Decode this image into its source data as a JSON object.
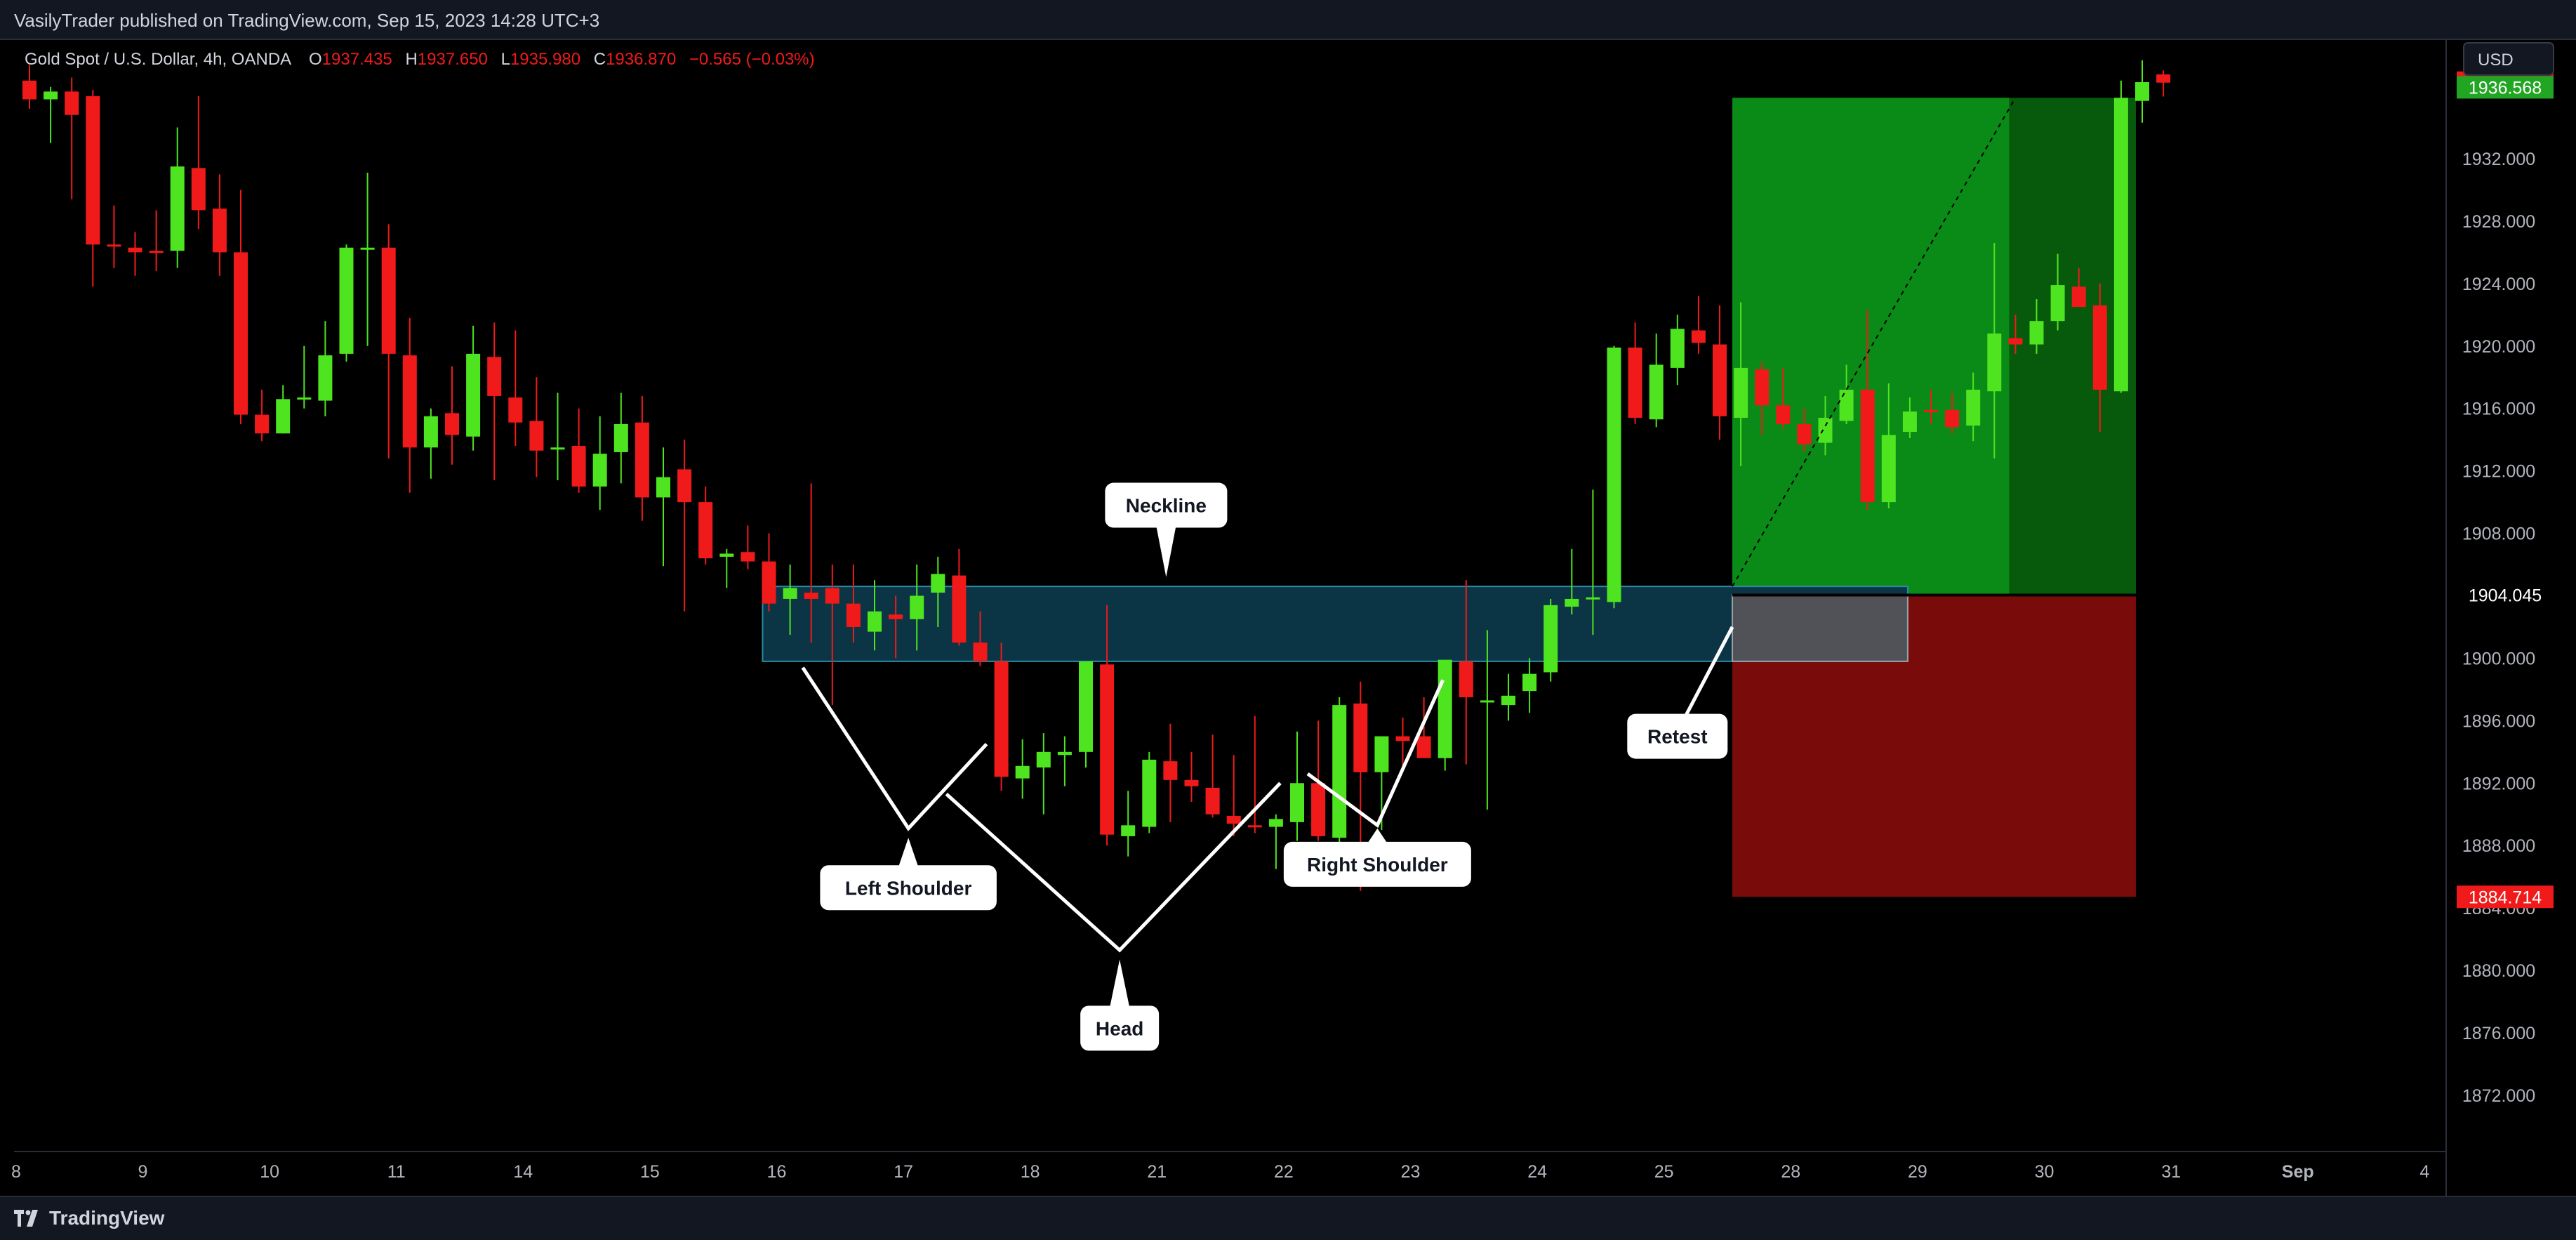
{
  "header": {
    "published": "VasilyTrader published on TradingView.com, Sep 15, 2023 14:28 UTC+3",
    "symbol": "Gold Spot / U.S. Dollar, 4h, OANDA",
    "o_label": "O",
    "o_value": "1937.435",
    "h_label": "H",
    "h_value": "1937.650",
    "l_label": "L",
    "l_value": "1935.980",
    "c_label": "C",
    "c_value": "1936.870",
    "change": "−0.565 (−0.03%)",
    "currency": "USD"
  },
  "footer": {
    "brand": "TradingView"
  },
  "colors": {
    "up": "#4ee41f",
    "down": "#f01a1a",
    "bg": "#000000",
    "zone": "#0b3544",
    "target": "#0a8a16",
    "stop": "#7a0b0b"
  },
  "chart_data": {
    "type": "candlestick",
    "ylim": [
      1868.4,
      1939.6
    ],
    "y_ticks": [
      1872,
      1876,
      1880,
      1884,
      1888,
      1892,
      1896,
      1900,
      1904,
      1908,
      1912,
      1916,
      1920,
      1924,
      1928,
      1932
    ],
    "y_tick_labels": [
      "1872.000",
      "1876.000",
      "1880.000",
      "1884.000",
      "1888.000",
      "1892.000",
      "1896.000",
      "1900.000",
      "1904.000",
      "1908.000",
      "1912.000",
      "1916.000",
      "1920.000",
      "1924.000",
      "1928.000",
      "1932.000"
    ],
    "price_labels": [
      {
        "value": 1936.87,
        "text": "1936.870",
        "color": "#f01a1a"
      },
      {
        "value": 1936.568,
        "text": "1936.568",
        "color": "#22a523"
      },
      {
        "value": 1904.045,
        "text": "1904.045",
        "color": "#000000"
      },
      {
        "value": 1884.714,
        "text": "1884.714",
        "color": "#f01a1a"
      }
    ],
    "x_labels": [
      {
        "i": -1,
        "text": "8"
      },
      {
        "i": 5,
        "text": "9"
      },
      {
        "i": 11,
        "text": "10"
      },
      {
        "i": 17,
        "text": "11"
      },
      {
        "i": 23,
        "text": "14"
      },
      {
        "i": 29,
        "text": "15"
      },
      {
        "i": 35,
        "text": "16"
      },
      {
        "i": 41,
        "text": "17"
      },
      {
        "i": 47,
        "text": "18"
      },
      {
        "i": 53,
        "text": "21"
      },
      {
        "i": 59,
        "text": "22"
      },
      {
        "i": 65,
        "text": "23"
      },
      {
        "i": 71,
        "text": "24"
      },
      {
        "i": 77,
        "text": "25"
      },
      {
        "i": 83,
        "text": "28"
      },
      {
        "i": 89,
        "text": "29"
      },
      {
        "i": 95,
        "text": "30"
      },
      {
        "i": 101,
        "text": "31"
      },
      {
        "i": 107,
        "text": "Sep"
      },
      {
        "i": 113,
        "text": "4"
      }
    ],
    "candles": [
      [
        1937.0,
        1938.0,
        1935.2,
        1935.8
      ],
      [
        1935.8,
        1936.6,
        1933.0,
        1936.3
      ],
      [
        1936.3,
        1937.2,
        1929.4,
        1934.8
      ],
      [
        1936.0,
        1936.4,
        1923.8,
        1926.5
      ],
      [
        1926.5,
        1929.0,
        1925.0,
        1926.4
      ],
      [
        1926.3,
        1927.3,
        1924.5,
        1926.0
      ],
      [
        1926.1,
        1928.7,
        1924.8,
        1926.0
      ],
      [
        1926.1,
        1934.0,
        1925.0,
        1931.5
      ],
      [
        1931.4,
        1936.0,
        1927.5,
        1928.7
      ],
      [
        1928.8,
        1931.0,
        1924.5,
        1926.0
      ],
      [
        1926.0,
        1930.0,
        1915.0,
        1915.6
      ],
      [
        1915.6,
        1917.2,
        1913.9,
        1914.4
      ],
      [
        1914.4,
        1917.5,
        1914.4,
        1916.6
      ],
      [
        1916.6,
        1920.0,
        1916.0,
        1916.7
      ],
      [
        1916.5,
        1921.6,
        1915.5,
        1919.4
      ],
      [
        1919.5,
        1926.5,
        1919.0,
        1926.3
      ],
      [
        1926.3,
        1931.1,
        1920.0,
        1926.3
      ],
      [
        1926.3,
        1927.8,
        1912.8,
        1919.5
      ],
      [
        1919.4,
        1921.8,
        1910.6,
        1913.5
      ],
      [
        1913.5,
        1916.0,
        1911.5,
        1915.5
      ],
      [
        1915.7,
        1918.7,
        1912.4,
        1914.3
      ],
      [
        1914.2,
        1921.3,
        1913.3,
        1919.5
      ],
      [
        1919.3,
        1921.5,
        1911.4,
        1916.8
      ],
      [
        1916.7,
        1921.0,
        1913.6,
        1915.1
      ],
      [
        1915.2,
        1918.0,
        1911.6,
        1913.3
      ],
      [
        1913.5,
        1917.0,
        1911.4,
        1913.5
      ],
      [
        1913.6,
        1916.0,
        1910.6,
        1911.0
      ],
      [
        1911.0,
        1915.5,
        1909.5,
        1913.1
      ],
      [
        1913.2,
        1917.0,
        1911.2,
        1915.0
      ],
      [
        1915.1,
        1916.8,
        1908.8,
        1910.3
      ],
      [
        1910.3,
        1913.5,
        1905.9,
        1911.6
      ],
      [
        1912.1,
        1914.0,
        1903.0,
        1910.0
      ],
      [
        1910.0,
        1911.0,
        1906.0,
        1906.4
      ],
      [
        1906.5,
        1907.0,
        1904.5,
        1906.7
      ],
      [
        1906.8,
        1908.5,
        1905.7,
        1906.2
      ],
      [
        1906.2,
        1908.0,
        1903.0,
        1903.5
      ],
      [
        1903.8,
        1906.0,
        1901.5,
        1904.5
      ],
      [
        1904.2,
        1911.2,
        1901.0,
        1903.8
      ],
      [
        1904.5,
        1906.0,
        1897.0,
        1903.5
      ],
      [
        1903.5,
        1906.0,
        1901.0,
        1902.0
      ],
      [
        1901.7,
        1905.0,
        1900.5,
        1903.0
      ],
      [
        1902.8,
        1904.0,
        1900.0,
        1902.5
      ],
      [
        1902.5,
        1906.0,
        1900.5,
        1904.0
      ],
      [
        1904.2,
        1906.5,
        1902.0,
        1905.4
      ],
      [
        1905.3,
        1907.0,
        1900.8,
        1901.0
      ],
      [
        1901.0,
        1903.0,
        1899.5,
        1899.8
      ],
      [
        1899.8,
        1901.0,
        1891.5,
        1892.4
      ],
      [
        1892.3,
        1894.8,
        1891.0,
        1893.1
      ],
      [
        1893.0,
        1895.2,
        1890.0,
        1894.0
      ],
      [
        1893.8,
        1895.0,
        1891.8,
        1894.0
      ],
      [
        1894.0,
        1899.5,
        1893.0,
        1899.8
      ],
      [
        1899.6,
        1903.4,
        1888.0,
        1888.7
      ],
      [
        1888.6,
        1891.5,
        1887.3,
        1889.3
      ],
      [
        1889.2,
        1894.0,
        1888.8,
        1893.5
      ],
      [
        1893.4,
        1895.8,
        1889.5,
        1892.2
      ],
      [
        1892.2,
        1894.0,
        1890.8,
        1891.8
      ],
      [
        1891.7,
        1895.1,
        1889.8,
        1890.0
      ],
      [
        1889.9,
        1893.8,
        1888.6,
        1889.4
      ],
      [
        1889.3,
        1896.3,
        1888.8,
        1889.2
      ],
      [
        1889.2,
        1890.0,
        1886.5,
        1889.7
      ],
      [
        1889.5,
        1895.3,
        1888.3,
        1892.0
      ],
      [
        1892.0,
        1896.0,
        1888.3,
        1888.6
      ],
      [
        1888.5,
        1897.5,
        1887.5,
        1897.0
      ],
      [
        1897.1,
        1898.5,
        1885.1,
        1892.7
      ],
      [
        1892.7,
        1895.0,
        1889.0,
        1895.0
      ],
      [
        1895.0,
        1896.2,
        1893.0,
        1894.7
      ],
      [
        1895.0,
        1897.5,
        1893.8,
        1893.6
      ],
      [
        1893.6,
        1899.5,
        1892.8,
        1899.9
      ],
      [
        1899.8,
        1905.0,
        1893.2,
        1897.5
      ],
      [
        1897.3,
        1901.8,
        1890.3,
        1897.3
      ],
      [
        1897.0,
        1899.0,
        1896.0,
        1897.6
      ],
      [
        1897.9,
        1900.0,
        1896.5,
        1899.0
      ],
      [
        1899.1,
        1903.8,
        1898.5,
        1903.4
      ],
      [
        1903.3,
        1907.0,
        1902.8,
        1903.8
      ],
      [
        1903.9,
        1910.8,
        1901.5,
        1903.9
      ],
      [
        1903.6,
        1920.0,
        1903.2,
        1919.9
      ],
      [
        1919.9,
        1921.5,
        1915.0,
        1915.4
      ],
      [
        1915.3,
        1920.8,
        1914.8,
        1918.8
      ],
      [
        1918.6,
        1922.0,
        1917.5,
        1921.1
      ],
      [
        1921.0,
        1923.2,
        1919.5,
        1920.2
      ],
      [
        1920.1,
        1922.6,
        1914.0,
        1915.5
      ],
      [
        1915.4,
        1922.8,
        1912.3,
        1918.6
      ],
      [
        1918.5,
        1919.0,
        1914.3,
        1916.2
      ],
      [
        1916.2,
        1918.6,
        1914.7,
        1915.0
      ],
      [
        1915.0,
        1916.0,
        1913.2,
        1913.7
      ],
      [
        1913.8,
        1916.8,
        1913.0,
        1915.4
      ],
      [
        1915.2,
        1918.8,
        1915.0,
        1917.2
      ],
      [
        1917.2,
        1922.3,
        1909.5,
        1910.0
      ],
      [
        1910.0,
        1917.6,
        1909.6,
        1914.3
      ],
      [
        1914.5,
        1916.7,
        1914.1,
        1915.8
      ],
      [
        1915.9,
        1917.2,
        1915.0,
        1915.8
      ],
      [
        1915.9,
        1917.0,
        1914.4,
        1914.8
      ],
      [
        1914.9,
        1918.3,
        1913.9,
        1917.2
      ],
      [
        1917.1,
        1926.6,
        1912.8,
        1920.8
      ],
      [
        1920.5,
        1922.0,
        1919.5,
        1920.1
      ],
      [
        1920.1,
        1923.0,
        1919.5,
        1921.6
      ],
      [
        1921.6,
        1925.9,
        1921.0,
        1923.9
      ],
      [
        1923.8,
        1925.0,
        1922.7,
        1922.5
      ],
      [
        1922.6,
        1924.0,
        1914.5,
        1917.2
      ],
      [
        1917.1,
        1937.0,
        1917.0,
        1935.9
      ],
      [
        1935.7,
        1938.3,
        1934.3,
        1936.9
      ],
      [
        1937.4,
        1937.65,
        1935.98,
        1936.87
      ]
    ],
    "zones": {
      "neckline": {
        "top": 1904.6,
        "bottom": 1899.8,
        "i_start": 34.7,
        "i_end": 88.9
      },
      "target": {
        "top": 1935.9,
        "bottom": 1904.045,
        "i_start": 80.6,
        "i_end": 99.7
      },
      "stop": {
        "top": 1904.045,
        "bottom": 1884.714,
        "i_start": 80.6,
        "i_end": 99.7
      },
      "grey": {
        "top": 1904.045,
        "bottom": 1899.8,
        "i_start": 80.6,
        "i_end": 88.9
      },
      "target_fill_until": 93.7
    },
    "pattern_lines": [
      [
        [
          36.6,
          1899.4
        ],
        [
          41.6,
          1889.1
        ],
        [
          45.3,
          1894.5
        ]
      ],
      [
        [
          43.4,
          1891.3
        ],
        [
          51.6,
          1881.3
        ],
        [
          59.2,
          1892.0
        ]
      ],
      [
        [
          60.5,
          1892.6
        ],
        [
          63.8,
          1889.3
        ],
        [
          66.9,
          1898.6
        ]
      ],
      [
        [
          80.6,
          1902.0
        ],
        [
          78.0,
          1895.3
        ]
      ]
    ],
    "trend_line": [
      [
        80.6,
        1904.6
      ],
      [
        94.0,
        1935.9
      ]
    ],
    "annotations": [
      {
        "text": "Neckline",
        "i": 53.8,
        "price": 1909.8,
        "pointer": "down",
        "tip_price": 1905.2
      },
      {
        "text": "Left Shoulder",
        "i": 41.6,
        "price": 1885.3,
        "pointer": "up",
        "tip_price": 1888.5
      },
      {
        "text": "Head",
        "i": 51.6,
        "price": 1876.3,
        "pointer": "up",
        "tip_price": 1880.7
      },
      {
        "text": "Right Shoulder",
        "i": 63.8,
        "price": 1886.8,
        "pointer": "up",
        "tip_price": 1889.1
      },
      {
        "text": "Retest",
        "i": 78.0,
        "price": 1895.0,
        "pointer": "none",
        "tip_price": 1895.0
      }
    ]
  }
}
